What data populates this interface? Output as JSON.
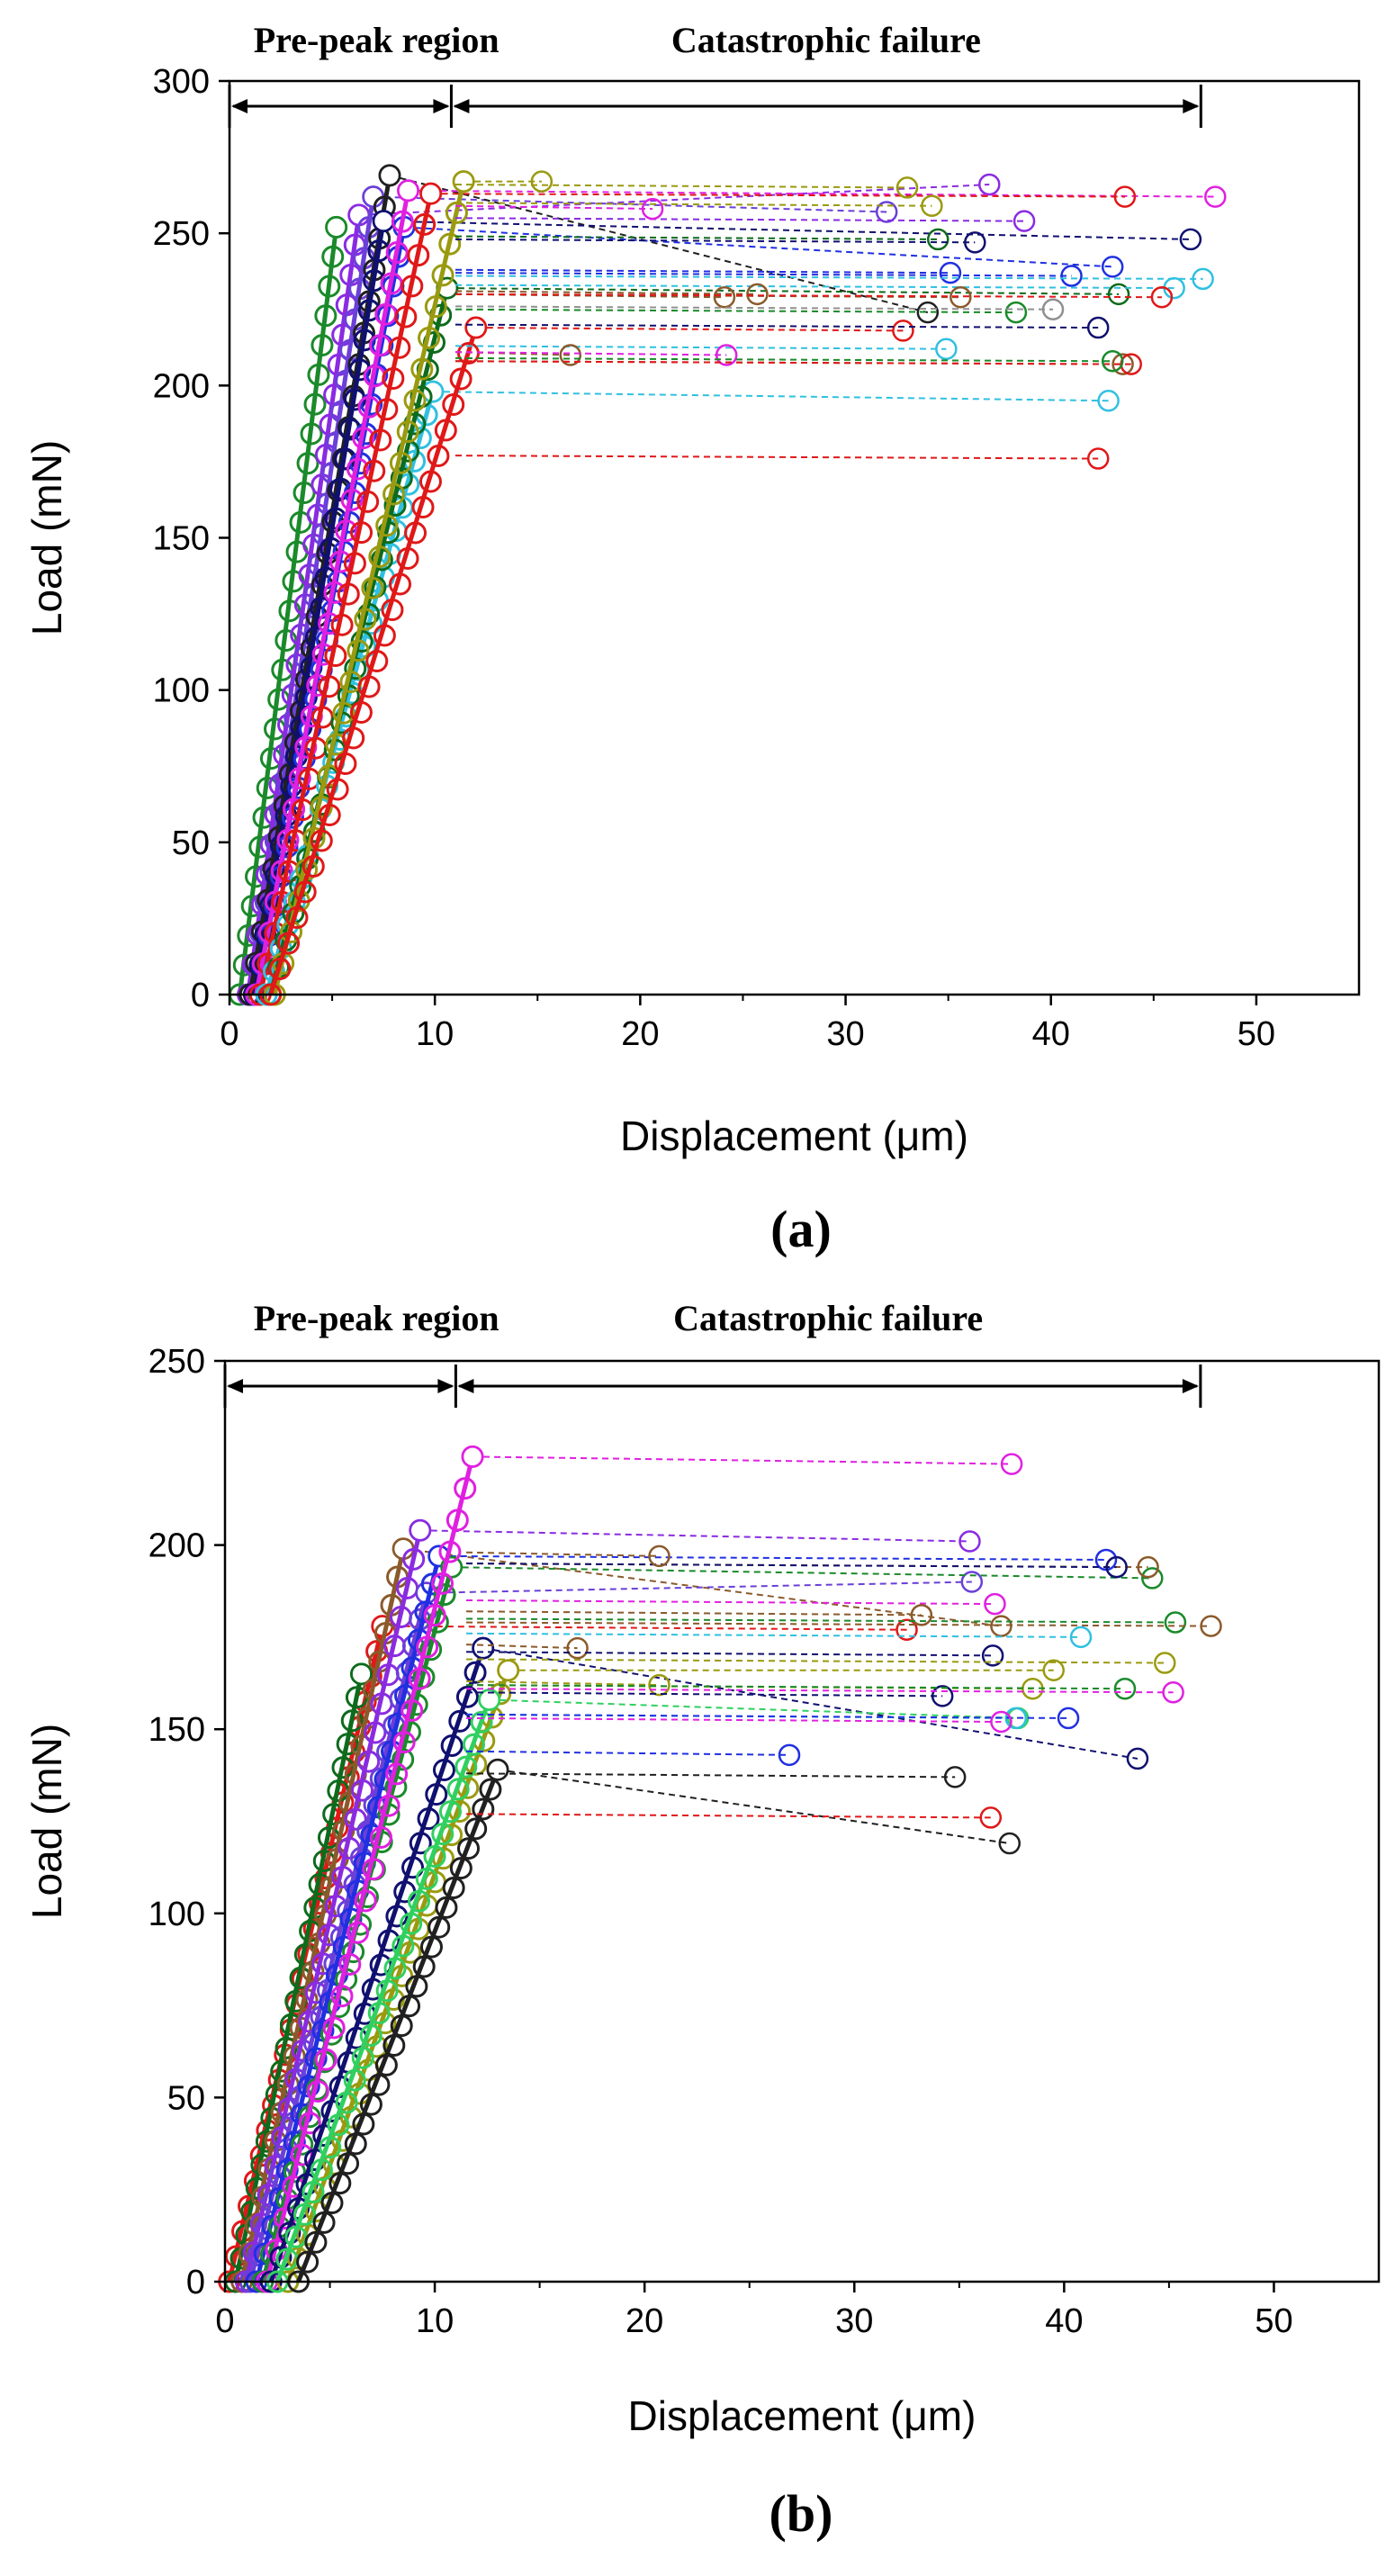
{
  "colors": {
    "green": "#1a8a2a",
    "dark_green": "#0d6b1c",
    "purple": "#8a2be2",
    "blue_purple": "#6a40d8",
    "navy": "#101070",
    "blue": "#2030e0",
    "magenta": "#e020e0",
    "red": "#e01818",
    "cyan": "#30c0e0",
    "olive": "#9a9a10",
    "black": "#202020",
    "light_green": "#30d060",
    "brown": "#8b5a2b",
    "gray": "#909090"
  },
  "charts": [
    {
      "panel_label": "(a)",
      "chart_data": {
        "type": "line",
        "title": "",
        "xlabel": "Displacement (μm)",
        "ylabel": "Load (mN)",
        "xlim": [
          0,
          55
        ],
        "ylim": [
          0,
          300
        ],
        "xticks": [
          0,
          10,
          20,
          30,
          40,
          50
        ],
        "yticks": [
          0,
          50,
          100,
          150,
          200,
          250,
          300
        ],
        "region_labels": {
          "pre_peak": "Pre-peak region",
          "failure": "Catastrophic failure",
          "pre_peak_range": [
            0,
            10.8
          ],
          "failure_range": [
            10.8,
            47.3
          ]
        },
        "series": [
          {
            "color": "green",
            "x0": 0.5,
            "xp": 5.2,
            "peak": 252,
            "xe": 5.2,
            "ye": 252
          },
          {
            "color": "purple",
            "x0": 0.9,
            "xp": 6.3,
            "peak": 256,
            "xe": 37.0,
            "ye": 266
          },
          {
            "color": "blue_purple",
            "x0": 1.0,
            "xp": 7.0,
            "peak": 262,
            "xe": 32.0,
            "ye": 257
          },
          {
            "color": "black",
            "x0": 1.0,
            "xp": 7.8,
            "peak": 269,
            "xe": 34.0,
            "ye": 224
          },
          {
            "color": "navy",
            "x0": 1.2,
            "xp": 7.5,
            "peak": 254,
            "xe": 46.8,
            "ye": 248
          },
          {
            "color": "blue",
            "x0": 1.3,
            "xp": 8.5,
            "peak": 252,
            "xe": 43.0,
            "ye": 239
          },
          {
            "color": "magenta",
            "x0": 1.3,
            "xp": 8.7,
            "peak": 264,
            "xe": 48.0,
            "ye": 262
          },
          {
            "color": "red",
            "x0": 1.5,
            "xp": 9.8,
            "peak": 263,
            "xe": 43.6,
            "ye": 262
          },
          {
            "color": "cyan",
            "x0": 1.8,
            "xp": 9.9,
            "peak": 198,
            "xe": 42.8,
            "ye": 195
          },
          {
            "color": "dark_green",
            "x0": 2.0,
            "xp": 10.6,
            "peak": 232,
            "xe": 43.3,
            "ye": 230
          },
          {
            "color": "olive",
            "x0": 2.2,
            "xp": 11.4,
            "peak": 267,
            "xe": 15.2,
            "ye": 267
          },
          {
            "color": "red",
            "x0": 2.0,
            "xp": 12.0,
            "peak": 219,
            "xe": 32.8,
            "ye": 218
          }
        ],
        "extra_endpoints": [
          {
            "x": 33.0,
            "y": 265,
            "color": "olive"
          },
          {
            "x": 34.2,
            "y": 259,
            "color": "olive"
          },
          {
            "x": 38.7,
            "y": 254,
            "color": "purple"
          },
          {
            "x": 20.6,
            "y": 258,
            "color": "magenta"
          },
          {
            "x": 34.5,
            "y": 248,
            "color": "dark_green"
          },
          {
            "x": 36.3,
            "y": 247,
            "color": "navy"
          },
          {
            "x": 35.1,
            "y": 237,
            "color": "blue"
          },
          {
            "x": 41.0,
            "y": 236,
            "color": "blue"
          },
          {
            "x": 46.0,
            "y": 232,
            "color": "cyan"
          },
          {
            "x": 47.4,
            "y": 235,
            "color": "cyan"
          },
          {
            "x": 24.1,
            "y": 229,
            "color": "brown"
          },
          {
            "x": 25.7,
            "y": 230,
            "color": "brown"
          },
          {
            "x": 35.6,
            "y": 229,
            "color": "brown"
          },
          {
            "x": 45.4,
            "y": 229,
            "color": "red"
          },
          {
            "x": 38.3,
            "y": 224,
            "color": "green"
          },
          {
            "x": 40.1,
            "y": 225,
            "color": "gray"
          },
          {
            "x": 42.3,
            "y": 219,
            "color": "navy"
          },
          {
            "x": 34.9,
            "y": 212,
            "color": "cyan"
          },
          {
            "x": 16.6,
            "y": 210,
            "color": "brown"
          },
          {
            "x": 24.2,
            "y": 210,
            "color": "magenta"
          },
          {
            "x": 43.5,
            "y": 207,
            "color": "brown"
          },
          {
            "x": 43.9,
            "y": 207,
            "color": "red"
          },
          {
            "x": 43.0,
            "y": 208,
            "color": "green"
          },
          {
            "x": 42.3,
            "y": 176,
            "color": "red"
          }
        ]
      }
    },
    {
      "panel_label": "(b)",
      "chart_data": {
        "type": "line",
        "title": "",
        "xlabel": "Displacement (μm)",
        "ylabel": "Load (mN)",
        "xlim": [
          0,
          55
        ],
        "ylim": [
          0,
          250
        ],
        "xticks": [
          0,
          10,
          20,
          30,
          40,
          50
        ],
        "yticks": [
          0,
          50,
          100,
          150,
          200,
          250
        ],
        "region_labels": {
          "pre_peak": "Pre-peak region",
          "failure": "Catastrophic failure",
          "pre_peak_range": [
            0,
            11.0
          ],
          "failure_range": [
            11.0,
            46.5
          ]
        },
        "series": [
          {
            "color": "red",
            "x0": 0.2,
            "xp": 7.5,
            "peak": 178,
            "xe": 32.5,
            "ye": 177
          },
          {
            "color": "dark_green",
            "x0": 0.5,
            "xp": 6.5,
            "peak": 165,
            "xe": 6.5,
            "ye": 165
          },
          {
            "color": "brown",
            "x0": 0.8,
            "xp": 8.5,
            "peak": 199,
            "xe": 37.0,
            "ye": 178
          },
          {
            "color": "purple",
            "x0": 1.0,
            "xp": 9.3,
            "peak": 204,
            "xe": 35.5,
            "ye": 201
          },
          {
            "color": "blue_purple",
            "x0": 1.2,
            "xp": 9.6,
            "peak": 187,
            "xe": 35.6,
            "ye": 190
          },
          {
            "color": "blue",
            "x0": 1.5,
            "xp": 10.2,
            "peak": 197,
            "xe": 42.0,
            "ye": 196
          },
          {
            "color": "green",
            "x0": 1.8,
            "xp": 10.8,
            "peak": 194,
            "xe": 44.2,
            "ye": 191
          },
          {
            "color": "magenta",
            "x0": 2.0,
            "xp": 11.8,
            "peak": 224,
            "xe": 37.5,
            "ye": 222
          },
          {
            "color": "navy",
            "x0": 2.2,
            "xp": 12.3,
            "peak": 172,
            "xe": 43.5,
            "ye": 142
          },
          {
            "color": "olive",
            "x0": 3.0,
            "xp": 13.5,
            "peak": 166,
            "xe": 39.5,
            "ye": 166
          },
          {
            "color": "light_green",
            "x0": 2.5,
            "xp": 12.6,
            "peak": 158,
            "xe": 37.8,
            "ye": 153
          },
          {
            "color": "black",
            "x0": 3.5,
            "xp": 13.0,
            "peak": 139,
            "xe": 37.4,
            "ye": 119
          }
        ],
        "extra_endpoints": [
          {
            "x": 44.0,
            "y": 194,
            "color": "brown"
          },
          {
            "x": 42.5,
            "y": 194,
            "color": "navy"
          },
          {
            "x": 20.7,
            "y": 197,
            "color": "brown"
          },
          {
            "x": 36.7,
            "y": 184,
            "color": "magenta"
          },
          {
            "x": 33.2,
            "y": 181,
            "color": "brown"
          },
          {
            "x": 45.3,
            "y": 179,
            "color": "green"
          },
          {
            "x": 47.0,
            "y": 178,
            "color": "brown"
          },
          {
            "x": 40.8,
            "y": 175,
            "color": "cyan"
          },
          {
            "x": 16.8,
            "y": 172,
            "color": "brown"
          },
          {
            "x": 36.6,
            "y": 170,
            "color": "navy"
          },
          {
            "x": 44.8,
            "y": 168,
            "color": "olive"
          },
          {
            "x": 38.5,
            "y": 161,
            "color": "olive"
          },
          {
            "x": 20.7,
            "y": 162,
            "color": "olive"
          },
          {
            "x": 34.2,
            "y": 159,
            "color": "navy"
          },
          {
            "x": 42.9,
            "y": 161,
            "color": "green"
          },
          {
            "x": 45.2,
            "y": 160,
            "color": "magenta"
          },
          {
            "x": 37.7,
            "y": 153,
            "color": "cyan"
          },
          {
            "x": 40.2,
            "y": 153,
            "color": "blue"
          },
          {
            "x": 37.0,
            "y": 152,
            "color": "magenta"
          },
          {
            "x": 26.9,
            "y": 143,
            "color": "blue"
          },
          {
            "x": 34.8,
            "y": 137,
            "color": "black"
          },
          {
            "x": 36.5,
            "y": 126,
            "color": "red"
          }
        ]
      }
    }
  ]
}
